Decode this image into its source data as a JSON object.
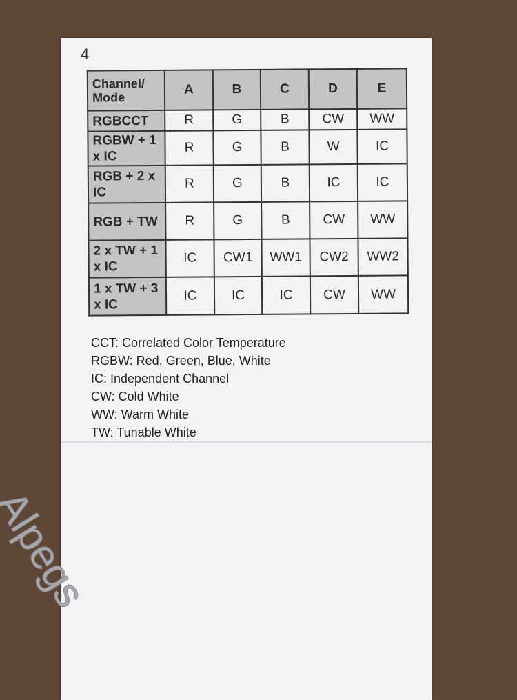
{
  "page_number": "4",
  "table": {
    "headers": [
      "Channel/ Mode",
      "A",
      "B",
      "C",
      "D",
      "E"
    ],
    "rows": [
      [
        "RGBCCT",
        "R",
        "G",
        "B",
        "CW",
        "WW"
      ],
      [
        "RGBW + 1 x IC",
        "R",
        "G",
        "B",
        "W",
        "IC"
      ],
      [
        "RGB + 2 x IC",
        "R",
        "G",
        "B",
        "IC",
        "IC"
      ],
      [
        "RGB + TW",
        "R",
        "G",
        "B",
        "CW",
        "WW"
      ],
      [
        "2 x TW + 1 x IC",
        "IC",
        "CW1",
        "WW1",
        "CW2",
        "WW2"
      ],
      [
        "1 x TW + 3 x IC",
        "IC",
        "IC",
        "IC",
        "CW",
        "WW"
      ]
    ]
  },
  "legend": [
    "CCT: Correlated Color Temperature",
    "RGBW: Red, Green, Blue, White",
    "IC: Independent Channel",
    "CW: Cold White",
    "WW: Warm White",
    "TW: Tunable White"
  ],
  "watermark": "Alpegs"
}
